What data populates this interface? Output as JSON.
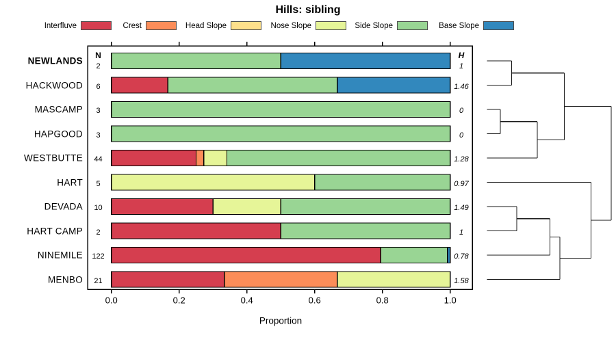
{
  "chart_data": {
    "type": "stacked_bar_horizontal_with_dendrogram",
    "title": "Hills: sibling",
    "xlabel": "Proportion",
    "n_header": "N",
    "h_header": "H",
    "x_ticks": {
      "labels": [
        "0.0",
        "0.2",
        "0.4",
        "0.6",
        "0.8",
        "1.0"
      ],
      "values": [
        0,
        0.2,
        0.4,
        0.6,
        0.8,
        1.0
      ]
    },
    "xlim": [
      0,
      1
    ],
    "grid": false,
    "legend_position": "top",
    "legend": [
      {
        "label": "Interfluve",
        "key": "interfluve",
        "color": "#D53E4F"
      },
      {
        "label": "Crest",
        "key": "crest",
        "color": "#FC8D59"
      },
      {
        "label": "Head Slope",
        "key": "head",
        "color": "#FEE08B"
      },
      {
        "label": "Nose Slope",
        "key": "nose",
        "color": "#E6F598"
      },
      {
        "label": "Side Slope",
        "key": "side",
        "color": "#99D594"
      },
      {
        "label": "Base Slope",
        "key": "base",
        "color": "#3288BD"
      }
    ],
    "rows": [
      {
        "name": "NEWLANDS",
        "bold": true,
        "n": "2",
        "h": "1",
        "segments": [
          {
            "key": "side",
            "value": 0.5
          },
          {
            "key": "base",
            "value": 0.5
          }
        ]
      },
      {
        "name": "HACKWOOD",
        "bold": false,
        "n": "6",
        "h": "1.46",
        "segments": [
          {
            "key": "interfluve",
            "value": 0.1667
          },
          {
            "key": "side",
            "value": 0.5
          },
          {
            "key": "base",
            "value": 0.3333
          }
        ]
      },
      {
        "name": "MASCAMP",
        "bold": false,
        "n": "3",
        "h": "0",
        "segments": [
          {
            "key": "side",
            "value": 1.0
          }
        ]
      },
      {
        "name": "HAPGOOD",
        "bold": false,
        "n": "3",
        "h": "0",
        "segments": [
          {
            "key": "side",
            "value": 1.0
          }
        ]
      },
      {
        "name": "WESTBUTTE",
        "bold": false,
        "n": "44",
        "h": "1.28",
        "segments": [
          {
            "key": "interfluve",
            "value": 0.25
          },
          {
            "key": "crest",
            "value": 0.0227
          },
          {
            "key": "nose",
            "value": 0.0682
          },
          {
            "key": "side",
            "value": 0.6591
          }
        ]
      },
      {
        "name": "HART",
        "bold": false,
        "n": "5",
        "h": "0.97",
        "segments": [
          {
            "key": "nose",
            "value": 0.6
          },
          {
            "key": "side",
            "value": 0.4
          }
        ]
      },
      {
        "name": "DEVADA",
        "bold": false,
        "n": "10",
        "h": "1.49",
        "segments": [
          {
            "key": "interfluve",
            "value": 0.3
          },
          {
            "key": "nose",
            "value": 0.2
          },
          {
            "key": "side",
            "value": 0.5
          }
        ]
      },
      {
        "name": "HART CAMP",
        "bold": false,
        "n": "2",
        "h": "1",
        "segments": [
          {
            "key": "interfluve",
            "value": 0.5
          },
          {
            "key": "side",
            "value": 0.5
          }
        ]
      },
      {
        "name": "NINEMILE",
        "bold": false,
        "n": "122",
        "h": "0.78",
        "segments": [
          {
            "key": "interfluve",
            "value": 0.7951
          },
          {
            "key": "side",
            "value": 0.1967
          },
          {
            "key": "base",
            "value": 0.0082
          }
        ]
      },
      {
        "name": "MENBO",
        "bold": false,
        "n": "21",
        "h": "1.58",
        "segments": [
          {
            "key": "interfluve",
            "value": 0.3333
          },
          {
            "key": "crest",
            "value": 0.3333
          },
          {
            "key": "nose",
            "value": 0.3334
          }
        ]
      }
    ],
    "dendrogram": {
      "h": 1,
      "children": [
        {
          "h": 0.623,
          "children": [
            {
              "h": 0.198,
              "children": [
                {
                  "leaf": 0
                },
                {
                  "leaf": 1
                }
              ]
            },
            {
              "h": 0.405,
              "children": [
                {
                  "h": 0.107,
                  "children": [
                    {
                      "leaf": 2
                    },
                    {
                      "leaf": 3
                    }
                  ]
                },
                {
                  "leaf": 4
                }
              ]
            }
          ]
        },
        {
          "h": 0.837,
          "children": [
            {
              "leaf": 5
            },
            {
              "h": 0.587,
              "children": [
                {
                  "h": 0.507,
                  "children": [
                    {
                      "h": 0.24,
                      "children": [
                        {
                          "leaf": 6
                        },
                        {
                          "leaf": 7
                        }
                      ]
                    },
                    {
                      "leaf": 8
                    }
                  ]
                },
                {
                  "leaf": 9
                }
              ]
            }
          ]
        }
      ]
    }
  }
}
